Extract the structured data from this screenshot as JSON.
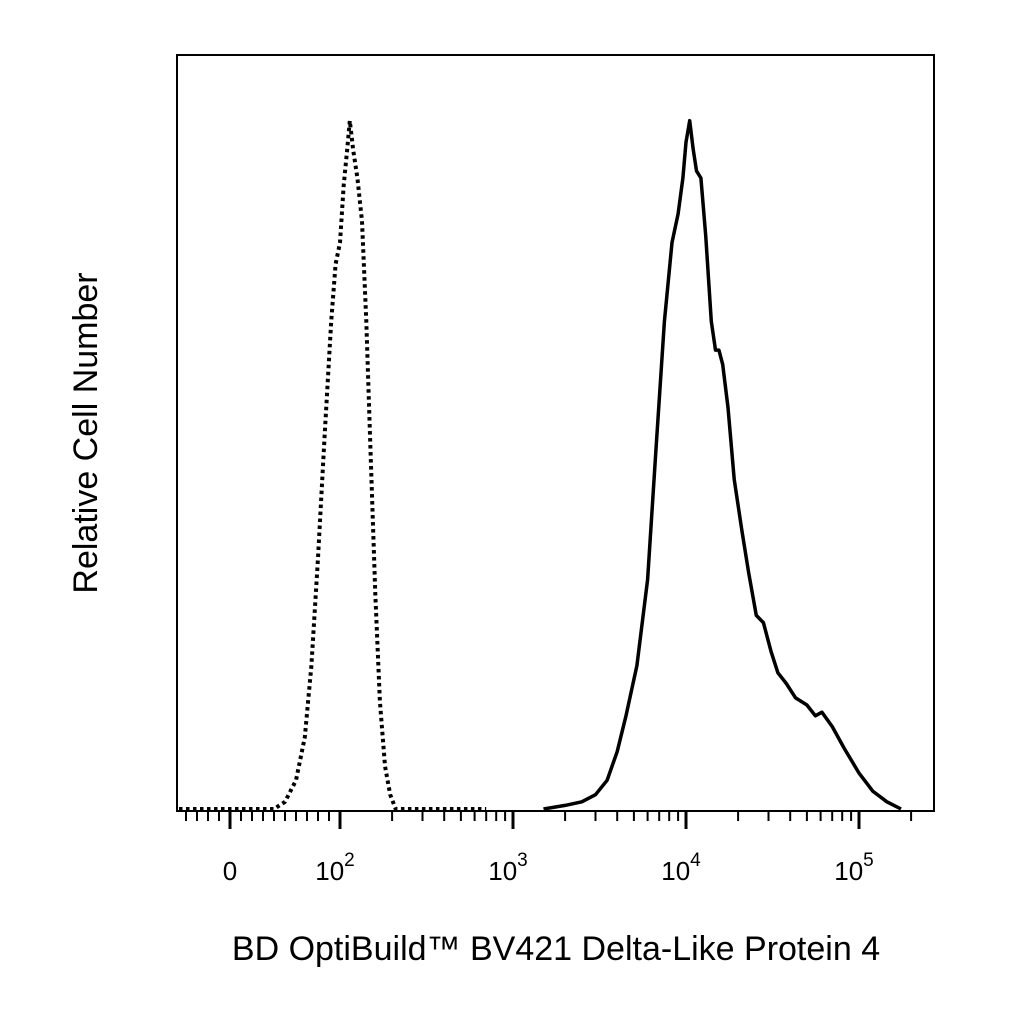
{
  "chart_data": {
    "type": "area",
    "title": "",
    "xlabel": "BD OptiBuild™ BV421 Delta-Like Protein 4",
    "ylabel": "Relative Cell Number",
    "x_scale": "biexponential",
    "xlim": [
      -100,
      200000
    ],
    "ylim": [
      0,
      1.0
    ],
    "grid": false,
    "legend": "none",
    "x_ticks": [
      {
        "value": 0,
        "base": "0",
        "exp": ""
      },
      {
        "value": 100,
        "base": "10",
        "exp": "2"
      },
      {
        "value": 1000,
        "base": "10",
        "exp": "3"
      },
      {
        "value": 10000,
        "base": "10",
        "exp": "4"
      },
      {
        "value": 100000,
        "base": "10",
        "exp": "5"
      }
    ],
    "series": [
      {
        "style": "dotted",
        "color": "#000000",
        "points": [
          [
            -60,
            0.0
          ],
          [
            40,
            0.0
          ],
          [
            50,
            0.01
          ],
          [
            60,
            0.04
          ],
          [
            68,
            0.1
          ],
          [
            74,
            0.2
          ],
          [
            80,
            0.35
          ],
          [
            86,
            0.52
          ],
          [
            92,
            0.68
          ],
          [
            96,
            0.76
          ],
          [
            100,
            0.79
          ],
          [
            105,
            0.87
          ],
          [
            110,
            0.92
          ],
          [
            114,
            0.96
          ],
          [
            119,
            0.92
          ],
          [
            126,
            0.88
          ],
          [
            134,
            0.82
          ],
          [
            142,
            0.68
          ],
          [
            150,
            0.5
          ],
          [
            160,
            0.3
          ],
          [
            170,
            0.15
          ],
          [
            182,
            0.06
          ],
          [
            195,
            0.02
          ],
          [
            210,
            0.0
          ],
          [
            700,
            0.0
          ]
        ]
      },
      {
        "style": "solid",
        "color": "#000000",
        "points": [
          [
            1500,
            0.0
          ],
          [
            2000,
            0.005
          ],
          [
            2500,
            0.01
          ],
          [
            3000,
            0.02
          ],
          [
            3500,
            0.04
          ],
          [
            4000,
            0.08
          ],
          [
            4500,
            0.13
          ],
          [
            5200,
            0.2
          ],
          [
            6000,
            0.32
          ],
          [
            6700,
            0.5
          ],
          [
            7500,
            0.68
          ],
          [
            8300,
            0.79
          ],
          [
            9000,
            0.83
          ],
          [
            9600,
            0.88
          ],
          [
            10000,
            0.93
          ],
          [
            10500,
            0.96
          ],
          [
            11000,
            0.92
          ],
          [
            11500,
            0.89
          ],
          [
            12200,
            0.88
          ],
          [
            13000,
            0.8
          ],
          [
            14000,
            0.68
          ],
          [
            14800,
            0.64
          ],
          [
            15500,
            0.64
          ],
          [
            16300,
            0.62
          ],
          [
            17500,
            0.56
          ],
          [
            19000,
            0.46
          ],
          [
            21000,
            0.39
          ],
          [
            23000,
            0.33
          ],
          [
            25500,
            0.27
          ],
          [
            28000,
            0.26
          ],
          [
            31000,
            0.22
          ],
          [
            34000,
            0.19
          ],
          [
            38000,
            0.175
          ],
          [
            43000,
            0.155
          ],
          [
            50000,
            0.145
          ],
          [
            56000,
            0.13
          ],
          [
            61000,
            0.135
          ],
          [
            70000,
            0.115
          ],
          [
            82000,
            0.085
          ],
          [
            100000,
            0.05
          ],
          [
            120000,
            0.025
          ],
          [
            145000,
            0.01
          ],
          [
            175000,
            0.0
          ]
        ]
      }
    ]
  }
}
